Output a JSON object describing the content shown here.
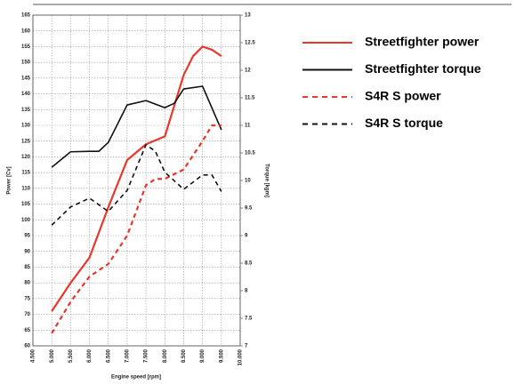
{
  "chart_data": {
    "type": "line",
    "xlabel": "Engine speed [rpm]",
    "ylabel": "Power [Cv]",
    "y2label": "Torque [kgm]",
    "xlim": [
      4500,
      10000
    ],
    "xticks": [
      {
        "value": 4500,
        "label": "4.500"
      },
      {
        "value": 5000,
        "label": "5.000"
      },
      {
        "value": 5500,
        "label": "5.500"
      },
      {
        "value": 6000,
        "label": "6.000"
      },
      {
        "value": 6500,
        "label": "6.500"
      },
      {
        "value": 7000,
        "label": "7.000"
      },
      {
        "value": 7500,
        "label": "7.500"
      },
      {
        "value": 8000,
        "label": "8.000"
      },
      {
        "value": 8500,
        "label": "8.500"
      },
      {
        "value": 9000,
        "label": "9.000"
      },
      {
        "value": 9500,
        "label": "9.500"
      },
      {
        "value": 10000,
        "label": "10.000"
      }
    ],
    "ylim": [
      60,
      165
    ],
    "yticks": [
      60,
      65,
      70,
      75,
      80,
      85,
      90,
      95,
      100,
      105,
      110,
      115,
      120,
      125,
      130,
      135,
      140,
      145,
      150,
      155,
      160,
      165
    ],
    "y2lim": [
      7,
      13
    ],
    "y2ticks": [
      7,
      7.5,
      8,
      8.5,
      9,
      9.5,
      10,
      10.5,
      11,
      11.5,
      12,
      12.5,
      13
    ],
    "grid": true,
    "series": [
      {
        "name": "Streetfighter power",
        "color": "#e8372c",
        "line_style": "solid",
        "axis": "y",
        "x": [
          5000,
          5500,
          6000,
          6500,
          7000,
          7500,
          8000,
          8500,
          8750,
          9000,
          9250,
          9500
        ],
        "values": [
          71,
          80,
          88,
          104,
          119,
          124,
          126.5,
          146,
          152,
          155,
          154,
          152
        ]
      },
      {
        "name": "Streetfighter torque",
        "color": "#111111",
        "line_style": "solid",
        "axis": "y2",
        "x": [
          5000,
          5500,
          6000,
          6250,
          6500,
          7000,
          7500,
          8000,
          8250,
          8500,
          9000,
          9500
        ],
        "values": [
          10.24,
          10.52,
          10.53,
          10.53,
          10.69,
          11.37,
          11.45,
          11.32,
          11.4,
          11.66,
          11.71,
          10.92
        ]
      },
      {
        "name": "S4R S power",
        "color": "#e8372c",
        "line_style": "dashed",
        "axis": "y",
        "x": [
          5000,
          5500,
          6000,
          6500,
          7000,
          7500,
          7750,
          8000,
          8500,
          9000,
          9250,
          9500
        ],
        "values": [
          64,
          74,
          82,
          86,
          95,
          111,
          113,
          113,
          116,
          125,
          130,
          130
        ]
      },
      {
        "name": "S4R S torque",
        "color": "#111111",
        "line_style": "dashed",
        "axis": "y2",
        "x": [
          5000,
          5500,
          6000,
          6500,
          7000,
          7500,
          7750,
          8000,
          8500,
          9000,
          9250,
          9500
        ],
        "values": [
          9.19,
          9.52,
          9.68,
          9.44,
          9.82,
          10.65,
          10.53,
          10.15,
          9.84,
          10.1,
          10.1,
          9.8
        ]
      }
    ]
  }
}
